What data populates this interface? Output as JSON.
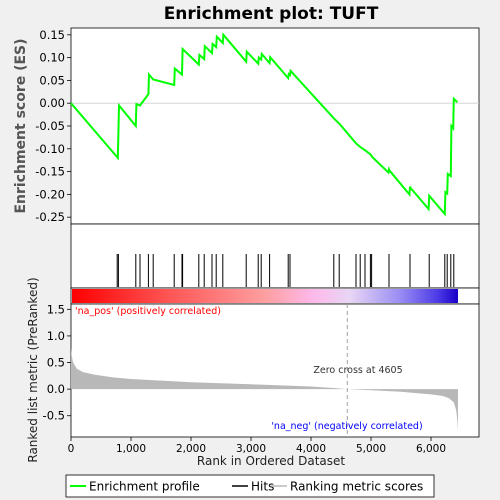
{
  "chart_data": {
    "type": "line",
    "title": "Enrichment plot: TUFT",
    "xlabel": "Rank in Ordered Dataset",
    "es_ylabel": "Enrichment score (ES)",
    "metric_ylabel": "Ranked list metric (PreRanked)",
    "xlim": [
      0,
      6800
    ],
    "x_ticks": [
      0,
      1000,
      2000,
      3000,
      4000,
      5000,
      6000
    ],
    "x_tick_labels": [
      "0",
      "1,000",
      "2,000",
      "3,000",
      "4,000",
      "5,000",
      "6,000"
    ],
    "es_ylim": [
      -0.265,
      0.165
    ],
    "es_ticks": [
      0.15,
      0.1,
      0.05,
      0.0,
      -0.05,
      -0.1,
      -0.15,
      -0.2,
      -0.25
    ],
    "es_tick_labels": [
      "0.15",
      "0.10",
      "0.05",
      "0.00",
      "-0.05",
      "-0.10",
      "-0.15",
      "-0.20",
      "-0.25"
    ],
    "metric_ylim": [
      -0.9,
      1.6
    ],
    "metric_ticks": [
      1.5,
      1.0,
      0.5,
      0.0,
      -0.5
    ],
    "metric_tick_labels": [
      "1.5",
      "1.0",
      "0.5",
      "0.0",
      "-0.5"
    ],
    "n_genes": 6450,
    "zero_cross_rank": 4605,
    "zero_cross_label": "Zero cross at 4605",
    "pos_label": "'na_pos' (positively correlated)",
    "neg_label": "'na_neg' (negatively correlated)",
    "es_profile": {
      "x": [
        0,
        780,
        790,
        800,
        1080,
        1090,
        1150,
        1290,
        1300,
        1370,
        1720,
        1730,
        1850,
        1860,
        2130,
        2140,
        2220,
        2230,
        2350,
        2360,
        2420,
        2430,
        2530,
        2540,
        2920,
        2930,
        3120,
        3130,
        3170,
        3180,
        3310,
        3320,
        3620,
        3630,
        3650,
        3660,
        4380,
        4480,
        4750,
        4820,
        4900,
        4990,
        5010,
        5020,
        5290,
        5300,
        5310,
        5640,
        5650,
        5660,
        5960,
        5970,
        6230,
        6240,
        6270,
        6280,
        6330,
        6340,
        6370,
        6380,
        6440
      ],
      "y": [
        0.0,
        -0.12,
        -0.065,
        -0.005,
        -0.05,
        -0.002,
        -0.005,
        0.02,
        0.063,
        0.052,
        0.04,
        0.076,
        0.063,
        0.119,
        0.085,
        0.106,
        0.097,
        0.125,
        0.11,
        0.13,
        0.123,
        0.146,
        0.132,
        0.15,
        0.091,
        0.113,
        0.087,
        0.1,
        0.096,
        0.108,
        0.088,
        0.101,
        0.055,
        0.064,
        0.062,
        0.071,
        -0.033,
        -0.046,
        -0.088,
        -0.096,
        -0.103,
        -0.112,
        -0.116,
        -0.118,
        -0.152,
        -0.145,
        -0.148,
        -0.2,
        -0.183,
        -0.186,
        -0.232,
        -0.203,
        -0.243,
        -0.195,
        -0.198,
        -0.155,
        -0.16,
        -0.05,
        -0.055,
        0.01,
        0.002
      ]
    },
    "hits": [
      770,
      790,
      1080,
      1150,
      1290,
      1370,
      1720,
      1850,
      1860,
      2130,
      2220,
      2350,
      2420,
      2530,
      2920,
      3120,
      3170,
      3310,
      3620,
      3650,
      4380,
      4470,
      4750,
      4820,
      4900,
      4990,
      5010,
      5300,
      5650,
      5970,
      6230,
      6270,
      6330,
      6380
    ],
    "metric_profile": {
      "x": [
        0,
        10,
        30,
        60,
        100,
        200,
        400,
        700,
        1000,
        1500,
        2000,
        2500,
        3000,
        3500,
        4000,
        4400,
        4605,
        5000,
        5500,
        5800,
        6000,
        6200,
        6300,
        6380,
        6420,
        6440,
        6450
      ],
      "y": [
        0.78,
        0.65,
        0.52,
        0.45,
        0.38,
        0.32,
        0.27,
        0.22,
        0.19,
        0.16,
        0.13,
        0.11,
        0.09,
        0.07,
        0.05,
        0.02,
        0.0,
        -0.02,
        -0.05,
        -0.08,
        -0.1,
        -0.13,
        -0.17,
        -0.25,
        -0.4,
        -0.6,
        -0.78
      ]
    },
    "legend": {
      "position": "bottom",
      "items": [
        "Enrichment profile",
        "Hits",
        "Ranking metric scores"
      ]
    },
    "colors": {
      "profile": "#00ff00",
      "hits": "#000000",
      "metric_fill": "#b8b8b8",
      "zero_cross": "#a0a0a0",
      "pos_text": "#ff0000",
      "neg_text": "#0000ff"
    }
  }
}
